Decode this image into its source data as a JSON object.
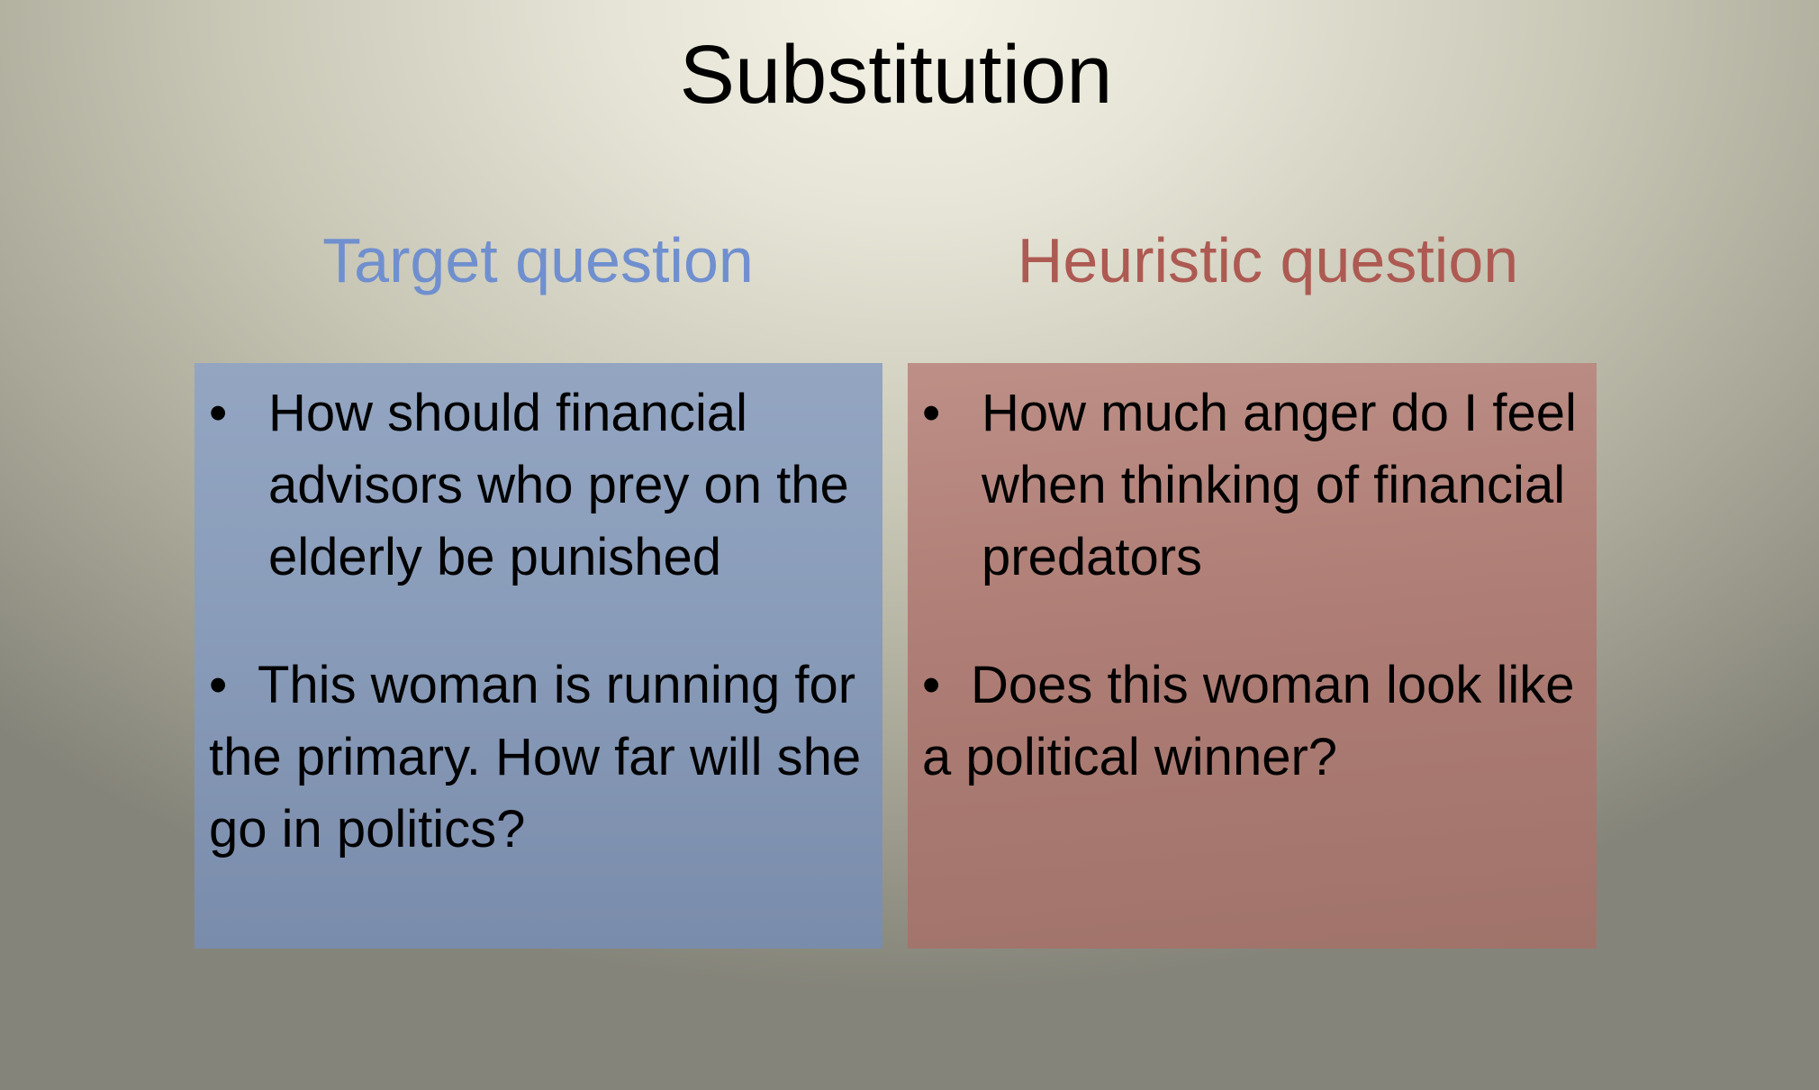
{
  "slide": {
    "title": "Substitution",
    "columns": [
      {
        "heading": "Target question",
        "bullets": [
          "How should financial advisors who prey on the elderly be punished",
          "This woman is running for the primary. How far will she go in politics?"
        ]
      },
      {
        "heading": "Heuristic question",
        "bullets": [
          "How much anger do I feel when thinking of financial predators",
          "Does this woman look like a political winner?"
        ]
      }
    ],
    "bullet_glyph": "•"
  },
  "colors": {
    "target_heading": "#6f8fcf",
    "heuristic_heading": "#ad5a52",
    "target_box": "#8a9dba",
    "heuristic_box": "#ae7d75"
  }
}
